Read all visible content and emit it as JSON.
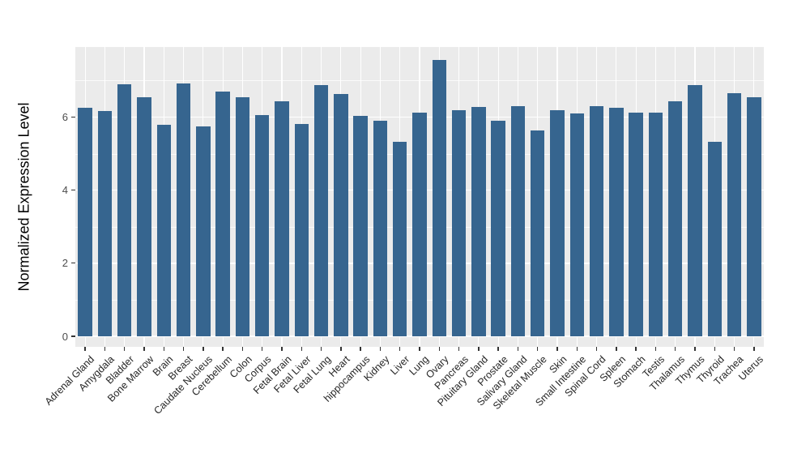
{
  "figure": {
    "kind": "ggplot-style bar chart",
    "background": "#ffffff"
  },
  "chart_data": {
    "type": "bar",
    "title": "",
    "xlabel": "",
    "ylabel": "Normalized Expression Level",
    "categories": [
      "Adrenal Gland",
      "Amygdala",
      "Bladder",
      "Bone Marrow",
      "Brain",
      "Breast",
      "Caudate Nucleus",
      "Cerebellum",
      "Colon",
      "Corpus",
      "Fetal Brain",
      "Fetal Liver",
      "Fetal Lung",
      "Heart",
      "hippocampus",
      "Kidney",
      "Liver",
      "Lung",
      "Ovary",
      "Pancreas",
      "Pituitary Gland",
      "Prostate",
      "Salivary Gland",
      "Skeletal Muscle",
      "Skin",
      "Small Intestine",
      "Spinal Cord",
      "Spleen",
      "Stomach",
      "Testis",
      "Thalamus",
      "Thymus",
      "Thyroid",
      "Trachea",
      "Uterus"
    ],
    "values": [
      6.25,
      6.17,
      6.89,
      6.55,
      5.8,
      6.92,
      5.75,
      6.69,
      6.54,
      6.06,
      6.43,
      5.82,
      6.88,
      6.63,
      6.04,
      5.89,
      5.32,
      6.12,
      7.57,
      6.2,
      6.27,
      5.9,
      6.29,
      5.64,
      6.2,
      6.1,
      6.3,
      6.25,
      6.12,
      6.12,
      6.43,
      6.88,
      5.32,
      6.66,
      6.54
    ],
    "y_ticks": [
      0,
      2,
      4,
      6
    ],
    "y_minor_gridlines": [
      1,
      3,
      5,
      7
    ],
    "ylim": [
      0,
      7.93
    ],
    "grid": true,
    "legend": false,
    "colors": {
      "bar": "#36658F",
      "panel_bg": "#EBEBEB",
      "gridline": "#FFFFFF",
      "y_axis_text": "#4D4D4D",
      "x_axis_text": "#262626",
      "axis_title": "#000000",
      "tick_mark": "#333333"
    }
  }
}
